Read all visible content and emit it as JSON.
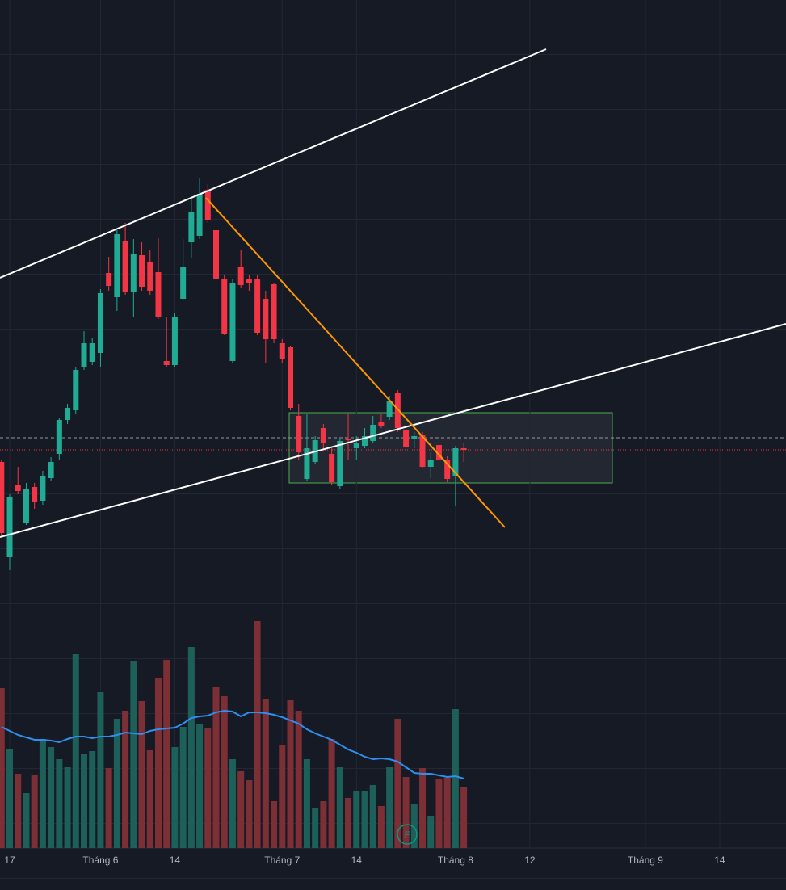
{
  "chart_data": {
    "type": "candlestick",
    "categories": [
      null,
      "17",
      null,
      null,
      null,
      null,
      null,
      null,
      null,
      null,
      null,
      null,
      "Tháng 6",
      null,
      null,
      null,
      null,
      null,
      null,
      null,
      null,
      "14",
      null,
      null,
      null,
      null,
      null,
      null,
      null,
      null,
      null,
      null,
      null,
      null,
      "Tháng 7",
      null,
      null,
      null,
      null,
      null,
      null,
      null,
      null,
      "14",
      null,
      null,
      null,
      null,
      null,
      null,
      null,
      null,
      null,
      null,
      null,
      "Tháng 8",
      null,
      null,
      null,
      null,
      null,
      null,
      null,
      null,
      "12",
      null,
      null,
      null,
      null,
      null,
      null,
      null,
      null,
      null,
      null,
      null,
      null,
      null,
      "Tháng 9",
      null,
      null,
      null,
      null,
      null,
      null,
      null,
      null,
      "14",
      null,
      null,
      null,
      null,
      null,
      null,
      null
    ],
    "open": [
      478,
      360,
      450,
      403,
      447,
      430,
      458,
      488,
      530,
      542,
      595,
      602,
      613,
      712,
      682,
      752,
      688,
      734,
      725,
      713,
      603,
      598,
      680,
      750,
      758,
      815,
      765,
      705,
      603,
      720,
      704,
      705,
      680,
      698,
      625,
      620,
      535,
      457,
      478,
      520,
      488,
      448,
      507,
      495,
      498,
      504,
      528,
      534,
      563,
      518,
      507,
      512,
      472,
      499,
      480,
      460,
      495,
      null,
      null,
      null,
      null,
      null,
      null,
      null,
      null,
      null,
      null,
      null,
      null,
      null,
      null,
      null,
      null,
      null,
      null,
      null,
      null,
      null,
      null,
      null,
      null,
      null,
      null,
      null,
      null,
      null,
      null,
      null,
      null,
      null,
      null,
      null,
      null,
      null,
      null
    ],
    "high": [
      480,
      438,
      472,
      452,
      452,
      467,
      484,
      533,
      550,
      595,
      640,
      632,
      692,
      732,
      765,
      774,
      754,
      750,
      740,
      755,
      658,
      662,
      754,
      805,
      830,
      822,
      768,
      710,
      705,
      740,
      710,
      710,
      690,
      700,
      630,
      622,
      550,
      538,
      510,
      525,
      495,
      507,
      538,
      510,
      520,
      535,
      538,
      560,
      567,
      522,
      515,
      515,
      490,
      504,
      485,
      498,
      502,
      null,
      null,
      null,
      null,
      null,
      null,
      null,
      null,
      null,
      null,
      null,
      null,
      null,
      null,
      null,
      null,
      null,
      null,
      null,
      null,
      null,
      null,
      null,
      null,
      null,
      null,
      null,
      null,
      null,
      null,
      null,
      null,
      null,
      null,
      null,
      null,
      null,
      null
    ],
    "low": [
      385,
      344,
      438,
      400,
      420,
      425,
      455,
      480,
      525,
      538,
      592,
      598,
      595,
      690,
      665,
      685,
      658,
      690,
      685,
      655,
      595,
      595,
      678,
      730,
      754,
      774,
      702,
      635,
      600,
      694,
      690,
      635,
      600,
      625,
      600,
      542,
      480,
      455,
      475,
      492,
      450,
      444,
      480,
      480,
      495,
      502,
      520,
      530,
      515,
      495,
      495,
      470,
      458,
      477,
      453,
      423,
      478,
      null,
      null,
      null,
      null,
      null,
      null,
      null,
      null,
      null,
      null,
      null,
      null,
      null,
      null,
      null,
      null,
      null,
      null,
      null,
      null,
      null,
      null,
      null,
      null,
      null,
      null,
      null,
      null,
      null,
      null,
      null,
      null,
      null,
      null,
      null,
      null,
      null,
      null
    ],
    "close": [
      390,
      435,
      442,
      445,
      428,
      460,
      478,
      530,
      545,
      592,
      625,
      625,
      687,
      696,
      760,
      688,
      735,
      695,
      690,
      657,
      598,
      658,
      720,
      787,
      810,
      778,
      705,
      637,
      700,
      697,
      700,
      638,
      630,
      630,
      605,
      545,
      490,
      495,
      505,
      502,
      453,
      504,
      505,
      502,
      510,
      524,
      522,
      554,
      520,
      497,
      510,
      472,
      480,
      480,
      457,
      495,
      493,
      null,
      null,
      null,
      null,
      null,
      null,
      null,
      null,
      null,
      null,
      null,
      null,
      null,
      null,
      null,
      null,
      null,
      null,
      null,
      null,
      null,
      null,
      null,
      null,
      null,
      null,
      null,
      null,
      null,
      null,
      null,
      null,
      null,
      null,
      null,
      null,
      null,
      null
    ],
    "volume": [
      198,
      123,
      92,
      68,
      90,
      135,
      125,
      110,
      100,
      240,
      117,
      120,
      193,
      99,
      160,
      170,
      232,
      182,
      121,
      210,
      233,
      125,
      150,
      249,
      154,
      148,
      199,
      188,
      110,
      95,
      84,
      281,
      185,
      58,
      128,
      183,
      170,
      110,
      50,
      58,
      135,
      100,
      62,
      70,
      70,
      78,
      52,
      100,
      160,
      88,
      54,
      99,
      40,
      85,
      87,
      172,
      76,
      null,
      null,
      null,
      null,
      null,
      null,
      null,
      null,
      null,
      null,
      null,
      null,
      null,
      null,
      null,
      null,
      null,
      null,
      null,
      null,
      null,
      null,
      null,
      null,
      null,
      null,
      null,
      null,
      null,
      null,
      null,
      null,
      null,
      null,
      null,
      null,
      null,
      null
    ],
    "volume_ma": [
      150,
      145,
      140,
      137,
      134,
      134,
      133,
      131,
      135,
      138,
      138,
      136,
      138,
      138,
      140,
      143,
      142,
      141,
      145,
      147,
      148,
      149,
      154,
      161,
      163,
      164,
      168,
      170,
      169,
      163,
      168,
      168,
      167,
      165,
      162,
      158,
      154,
      147,
      142,
      138,
      134,
      128,
      122,
      118,
      113,
      110,
      111,
      110,
      107,
      100,
      93,
      92,
      92,
      90,
      88,
      89,
      86,
      null,
      null,
      null,
      null,
      null,
      null,
      null,
      null,
      null,
      null,
      null,
      null,
      null,
      null,
      null,
      null,
      null,
      null,
      null,
      null,
      null,
      null,
      null,
      null,
      null,
      null,
      null,
      null,
      null,
      null,
      null,
      null,
      null,
      null,
      null,
      null,
      null,
      null
    ],
    "ylim": [
      0,
      1050
    ],
    "up_color": "#22ab94",
    "down_color": "#f23645",
    "volume_up_color": "#1d5f59",
    "volume_down_color": "#7d2f36",
    "ma_color": "#2f8ff0",
    "marker": "F"
  }
}
